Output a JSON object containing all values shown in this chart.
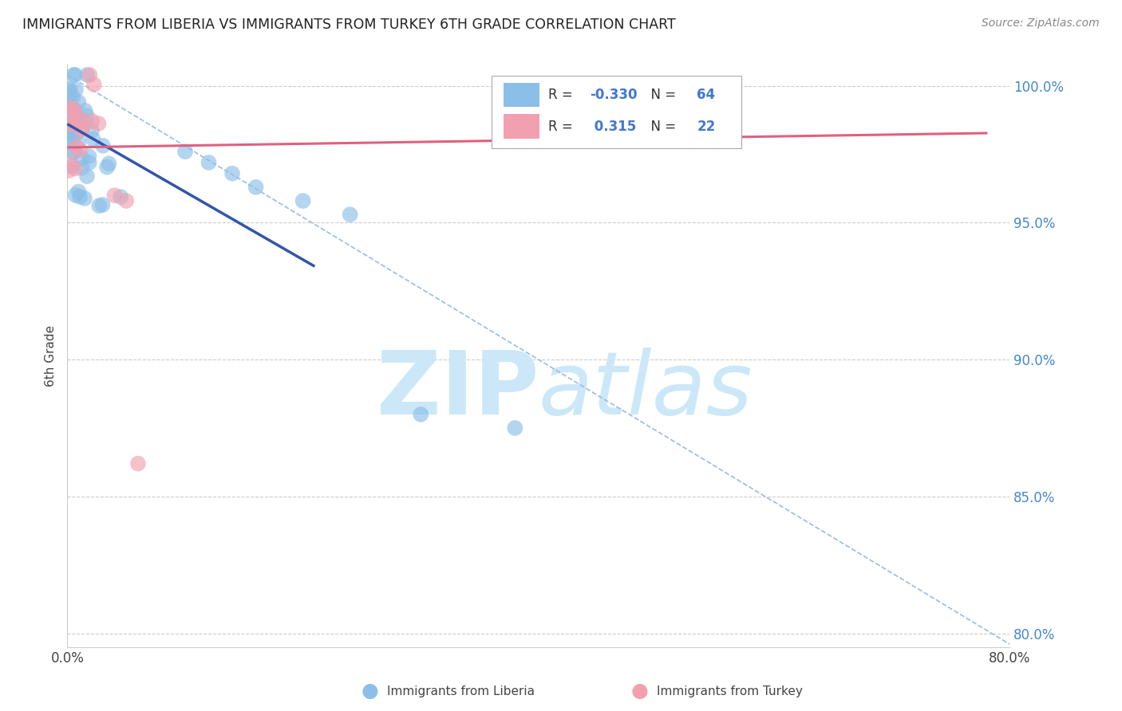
{
  "title": "IMMIGRANTS FROM LIBERIA VS IMMIGRANTS FROM TURKEY 6TH GRADE CORRELATION CHART",
  "source": "Source: ZipAtlas.com",
  "ylabel": "6th Grade",
  "legend_labels": [
    "Immigrants from Liberia",
    "Immigrants from Turkey"
  ],
  "R_liberia": -0.33,
  "N_liberia": 64,
  "R_turkey": 0.315,
  "N_turkey": 22,
  "xlim": [
    0.0,
    0.8
  ],
  "ylim": [
    0.795,
    1.008
  ],
  "x_ticks": [
    0.0,
    0.1,
    0.2,
    0.3,
    0.4,
    0.5,
    0.6,
    0.7,
    0.8
  ],
  "x_tick_labels": [
    "0.0%",
    "",
    "",
    "",
    "",
    "",
    "",
    "",
    "80.0%"
  ],
  "y_ticks": [
    0.8,
    0.85,
    0.9,
    0.95,
    1.0
  ],
  "y_tick_labels": [
    "80.0%",
    "85.0%",
    "90.0%",
    "95.0%",
    "100.0%"
  ],
  "color_liberia": "#8bbfe8",
  "color_turkey": "#f2a0b0",
  "trendline_liberia_color": "#3355aa",
  "trendline_turkey_color": "#e06080",
  "diag_color": "#9bbcdd",
  "background_color": "#ffffff",
  "watermark_color": "#cce8f8",
  "ytick_color": "#4488cc"
}
